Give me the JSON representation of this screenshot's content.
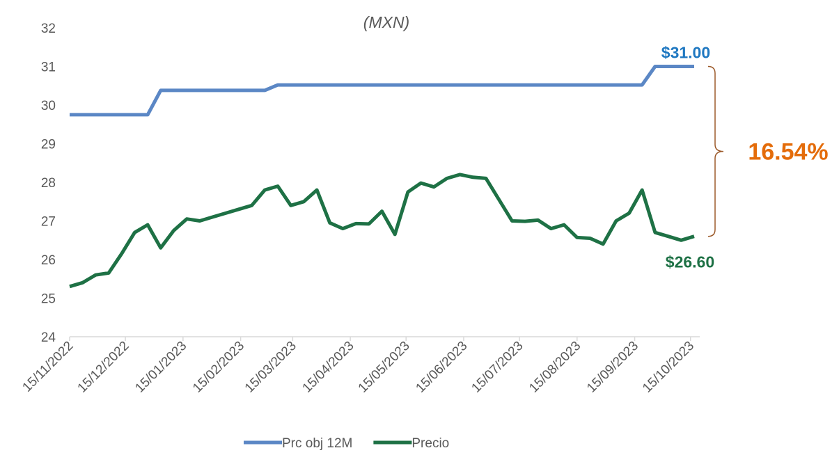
{
  "chart_data": {
    "type": "line",
    "title": "(MXN)",
    "x": [
      "15/11/2022",
      "22/11/2022",
      "29/11/2022",
      "06/12/2022",
      "13/12/2022",
      "20/12/2022",
      "27/12/2022",
      "03/01/2023",
      "10/01/2023",
      "17/01/2023",
      "24/01/2023",
      "31/01/2023",
      "07/02/2023",
      "14/02/2023",
      "21/02/2023",
      "28/02/2023",
      "07/03/2023",
      "14/03/2023",
      "21/03/2023",
      "28/03/2023",
      "04/04/2023",
      "11/04/2023",
      "18/04/2023",
      "25/04/2023",
      "02/05/2023",
      "09/05/2023",
      "16/05/2023",
      "23/05/2023",
      "30/05/2023",
      "06/06/2023",
      "13/06/2023",
      "20/06/2023",
      "27/06/2023",
      "04/07/2023",
      "11/07/2023",
      "18/07/2023",
      "25/07/2023",
      "01/08/2023",
      "08/08/2023",
      "15/08/2023",
      "22/08/2023",
      "29/08/2023",
      "05/09/2023",
      "12/09/2023",
      "19/09/2023",
      "26/09/2023",
      "03/10/2023",
      "10/10/2023",
      "17/10/2023"
    ],
    "series": [
      {
        "name": "Prc obj 12M",
        "color": "#5b87c5",
        "values": [
          29.75,
          29.75,
          29.75,
          29.75,
          29.75,
          29.75,
          29.75,
          30.38,
          30.38,
          30.38,
          30.38,
          30.38,
          30.38,
          30.38,
          30.38,
          30.38,
          30.52,
          30.52,
          30.52,
          30.52,
          30.52,
          30.52,
          30.52,
          30.52,
          30.52,
          30.52,
          30.52,
          30.52,
          30.52,
          30.52,
          30.52,
          30.52,
          30.52,
          30.52,
          30.52,
          30.52,
          30.52,
          30.52,
          30.52,
          30.52,
          30.52,
          30.52,
          30.52,
          30.52,
          30.52,
          31.0,
          31.0,
          31.0,
          31.0
        ]
      },
      {
        "name": "Precio",
        "color": "#1e7145",
        "values": [
          25.3,
          25.4,
          25.6,
          25.65,
          26.15,
          26.7,
          26.9,
          26.3,
          26.75,
          27.05,
          27.0,
          27.1,
          27.2,
          27.3,
          27.4,
          27.8,
          27.9,
          27.4,
          27.5,
          27.8,
          26.95,
          26.8,
          26.93,
          26.92,
          27.25,
          26.65,
          27.75,
          27.98,
          27.88,
          28.1,
          28.2,
          28.13,
          28.1,
          27.55,
          27.0,
          26.99,
          27.02,
          26.8,
          26.9,
          26.57,
          26.55,
          26.4,
          27.0,
          27.2,
          27.8,
          26.7,
          26.6,
          26.5,
          26.6
        ]
      }
    ],
    "annotations": [
      {
        "text": "$31.00",
        "color": "#1f78c1"
      },
      {
        "text": "$26.60",
        "color": "#1e7145"
      },
      {
        "text": "16.54%",
        "color": "#e46c0a"
      }
    ],
    "xlim": [
      "15/11/2022",
      "20/10/2023"
    ],
    "xticks": [
      "15/11/2022",
      "15/12/2022",
      "15/01/2023",
      "15/02/2023",
      "15/03/2023",
      "15/04/2023",
      "15/05/2023",
      "15/06/2023",
      "15/07/2023",
      "15/08/2023",
      "15/09/2023",
      "15/10/2023"
    ],
    "ylim": [
      24,
      32
    ],
    "yticks": [
      24,
      25,
      26,
      27,
      28,
      29,
      30,
      31,
      32
    ],
    "grid": false,
    "legend": "bottom"
  }
}
